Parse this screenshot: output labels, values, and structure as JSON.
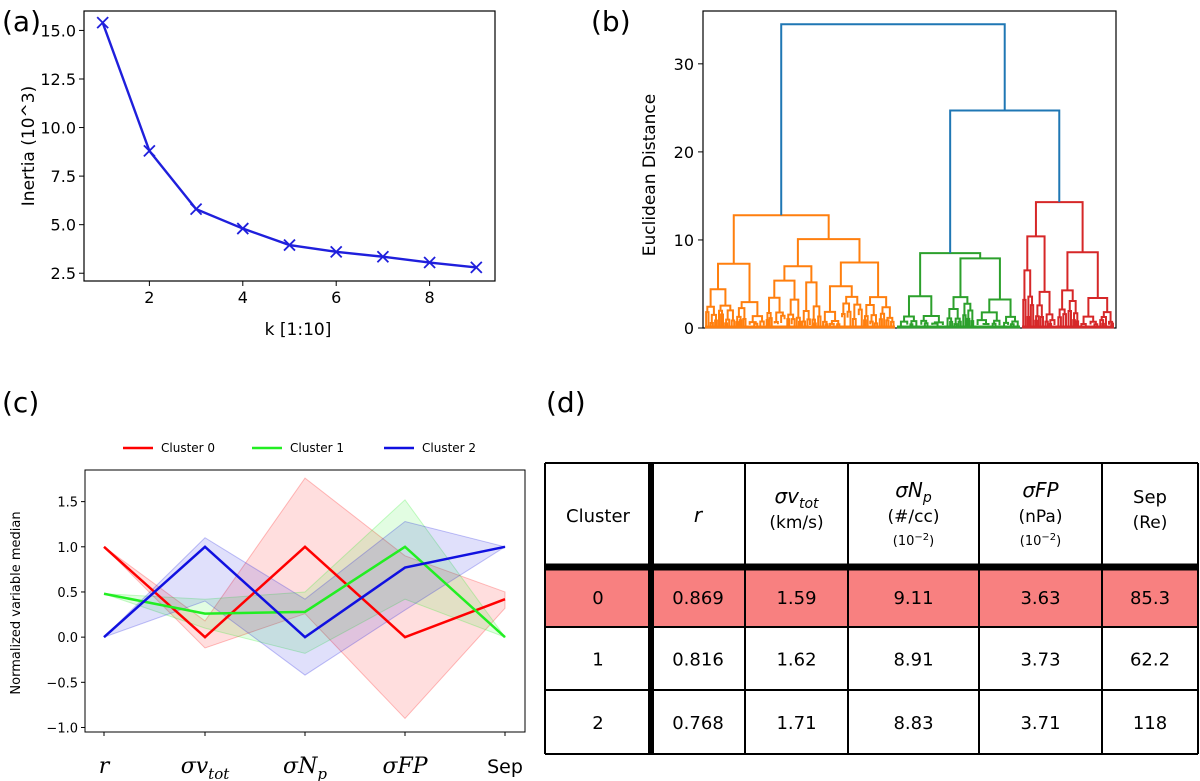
{
  "panels": {
    "a": "(a)",
    "b": "(b)",
    "c": "(c)",
    "d": "(d)"
  },
  "colors": {
    "blue": "#1f1fdc",
    "orange": "#ff7f0e",
    "green": "#2ca02c",
    "red": "#d62728",
    "link": "#1f77b4",
    "highlight": "#f88080"
  },
  "chart_data": [
    {
      "id": "a",
      "type": "line",
      "title": "",
      "xlabel": "k [1:10]",
      "ylabel": "Inertia (10^3)",
      "x": [
        1,
        2,
        3,
        4,
        5,
        6,
        7,
        8,
        9
      ],
      "values": [
        15.4,
        8.8,
        5.8,
        4.8,
        3.95,
        3.6,
        3.35,
        3.05,
        2.8
      ],
      "xlim": [
        0.6,
        9.4
      ],
      "ylim": [
        2.1,
        16.0
      ],
      "xticks": [
        "2",
        "4",
        "6",
        "8"
      ],
      "yticks": [
        "2.5",
        "5.0",
        "7.5",
        "10.0",
        "12.5",
        "15.0"
      ],
      "marker": "x"
    },
    {
      "id": "b",
      "type": "dendrogram",
      "title": "",
      "xlabel": "",
      "ylabel": "Euclidean Distance",
      "ylim": [
        0,
        36
      ],
      "yticks": [
        "0",
        "10",
        "20",
        "30"
      ],
      "clusters": [
        {
          "name": "orange cluster",
          "top_height": 12.8
        },
        {
          "name": "green cluster",
          "top_height": 8.5
        },
        {
          "name": "red cluster",
          "top_height": 14.3
        }
      ],
      "merges": [
        {
          "height": 24.7,
          "joins": "green + red"
        },
        {
          "height": 34.5,
          "joins": "orange + (green, red)"
        }
      ]
    },
    {
      "id": "c",
      "type": "line",
      "title": "",
      "xlabel": "",
      "ylabel": "Normalized variable median",
      "categories": [
        "r",
        "σv_tot",
        "σN_p",
        "σFP",
        "Sep"
      ],
      "ylim": [
        -1.05,
        1.85
      ],
      "yticks": [
        "−1.0",
        "−0.5",
        "0.0",
        "0.5",
        "1.0",
        "1.5"
      ],
      "legend": "top",
      "series": [
        {
          "name": "Cluster 0",
          "values": [
            1.0,
            0.0,
            1.0,
            0.0,
            0.42
          ],
          "upper": [
            1.0,
            0.18,
            1.76,
            0.9,
            0.5
          ],
          "lower": [
            1.0,
            -0.12,
            0.26,
            -0.9,
            0.32
          ]
        },
        {
          "name": "Cluster 1",
          "values": [
            0.48,
            0.26,
            0.28,
            1.0,
            0.0
          ],
          "upper": [
            0.48,
            0.42,
            0.5,
            1.52,
            0.0
          ],
          "lower": [
            0.48,
            0.1,
            -0.18,
            0.42,
            0.0
          ]
        },
        {
          "name": "Cluster 2",
          "values": [
            0.0,
            1.0,
            0.0,
            0.77,
            1.0
          ],
          "upper": [
            0.0,
            1.1,
            0.42,
            1.28,
            1.0
          ],
          "lower": [
            0.0,
            0.4,
            -0.42,
            0.3,
            1.0
          ]
        }
      ]
    },
    {
      "id": "d",
      "type": "table",
      "headers": [
        {
          "main": "Cluster"
        },
        {
          "main": "r",
          "math": true
        },
        {
          "main": "σv",
          "sub": "tot",
          "unit": "(km/s)",
          "math": true
        },
        {
          "main": "σN",
          "sub": "p",
          "unit": "(#/cc)",
          "scale": "(10",
          "scale_exp": "−2",
          "scale_end": ")",
          "math": true
        },
        {
          "main": "σFP",
          "unit": "(nPa)",
          "scale": "(10",
          "scale_exp": "−2",
          "scale_end": ")",
          "math": true
        },
        {
          "main": "Sep",
          "unit": "(Re)"
        }
      ],
      "rows": [
        [
          "0",
          "0.869",
          "1.59",
          "9.11",
          "3.63",
          "85.3"
        ],
        [
          "1",
          "0.816",
          "1.62",
          "8.91",
          "3.73",
          "62.2"
        ],
        [
          "2",
          "0.768",
          "1.71",
          "8.83",
          "3.71",
          "118"
        ]
      ],
      "highlight_row": 0
    }
  ]
}
